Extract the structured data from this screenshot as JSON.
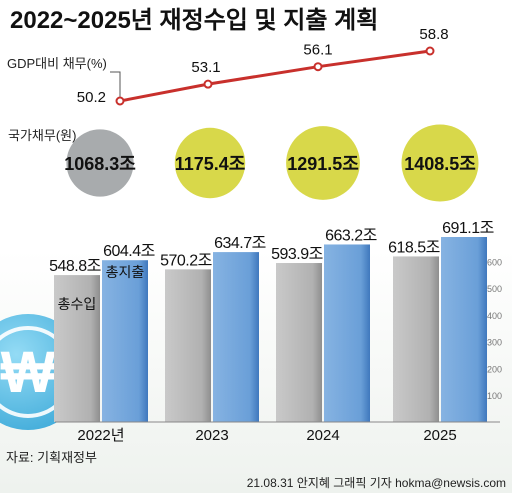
{
  "title": "2022~2025년 재정수입 및 지출 계획",
  "source": "자료: 기획재정부",
  "credit": "21.08.31 안지혜 그래픽 기자 hokma@newsis.com",
  "colors": {
    "line": "#c8302c",
    "debt_circle_first": "#a8abad",
    "debt_circle": "#d8d84a",
    "revenue_bar": "#b3b3b3",
    "expenditure_bar": "#6fa2d8",
    "coin": "#56c1e8"
  },
  "icons": {
    "coin": "won-coin-icon"
  },
  "chart_data": [
    {
      "type": "line",
      "ylabel": "GDP대비 채무(%)",
      "x": [
        "2022년",
        "2023",
        "2024",
        "2025"
      ],
      "values": [
        50.2,
        53.1,
        56.1,
        58.8
      ],
      "value_labels": [
        "50.2",
        "53.1",
        "56.1",
        "58.8"
      ]
    },
    {
      "type": "bubble",
      "label": "국가채무(원)",
      "x": [
        "2022년",
        "2023",
        "2024",
        "2025"
      ],
      "values": [
        1068.3,
        1175.4,
        1291.5,
        1408.5
      ],
      "value_labels": [
        "1068.3조",
        "1175.4조",
        "1291.5조",
        "1408.5조"
      ]
    },
    {
      "type": "bar",
      "categories": [
        "2022년",
        "2023",
        "2024",
        "2025"
      ],
      "series": [
        {
          "name": "총수입",
          "values": [
            548.8,
            570.2,
            593.9,
            618.5
          ],
          "value_labels": [
            "548.8조",
            "570.2조",
            "593.9조",
            "618.5조"
          ]
        },
        {
          "name": "총지출",
          "values": [
            604.4,
            634.7,
            663.2,
            691.1
          ],
          "value_labels": [
            "604.4조",
            "634.7조",
            "663.2조",
            "691.1조"
          ]
        }
      ],
      "ylim": [
        0,
        700
      ],
      "y_ticks": [
        "100",
        "200",
        "300",
        "400",
        "500",
        "600"
      ]
    }
  ]
}
